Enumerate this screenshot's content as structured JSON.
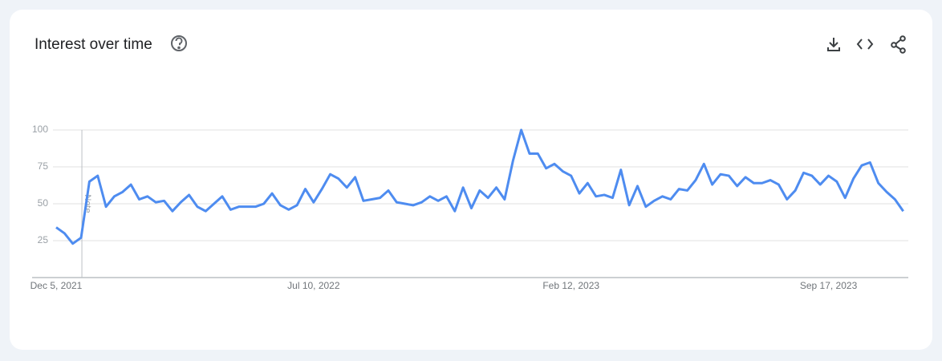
{
  "chart_data": {
    "type": "line",
    "title": "Interest over time",
    "categories": [
      "Dec 5, 2021",
      null,
      null,
      null,
      null,
      null,
      null,
      null,
      null,
      null,
      null,
      null,
      null,
      null,
      null,
      null,
      null,
      null,
      null,
      null,
      null,
      null,
      null,
      null,
      null,
      null,
      null,
      null,
      null,
      null,
      null,
      "Jul 10, 2022",
      null,
      null,
      null,
      null,
      null,
      null,
      null,
      null,
      null,
      null,
      null,
      null,
      null,
      null,
      null,
      null,
      null,
      null,
      null,
      null,
      null,
      null,
      null,
      null,
      null,
      null,
      null,
      null,
      null,
      null,
      "Feb 12, 2023",
      null,
      null,
      null,
      null,
      null,
      null,
      null,
      null,
      null,
      null,
      null,
      null,
      null,
      null,
      null,
      null,
      null,
      null,
      null,
      null,
      null,
      null,
      null,
      null,
      null,
      null,
      null,
      null,
      null,
      null,
      "Sep 17, 2023",
      null,
      null,
      null,
      null,
      null,
      null,
      null,
      null,
      null
    ],
    "values": [
      34,
      30,
      23,
      27,
      65,
      69,
      48,
      55,
      58,
      63,
      53,
      55,
      51,
      52,
      45,
      51,
      56,
      48,
      45,
      50,
      55,
      46,
      48,
      48,
      48,
      50,
      57,
      49,
      46,
      49,
      60,
      51,
      60,
      70,
      67,
      61,
      68,
      52,
      53,
      54,
      59,
      51,
      50,
      49,
      51,
      55,
      52,
      55,
      45,
      61,
      47,
      59,
      54,
      61,
      53,
      79,
      100,
      84,
      84,
      74,
      77,
      72,
      69,
      57,
      64,
      55,
      56,
      54,
      73,
      49,
      62,
      48,
      52,
      55,
      53,
      60,
      59,
      66,
      77,
      63,
      70,
      69,
      62,
      68,
      64,
      64,
      66,
      63,
      53,
      59,
      71,
      69,
      63,
      69,
      65,
      54,
      67,
      76,
      78,
      64,
      58,
      53,
      45
    ],
    "color": "#4e8cf0",
    "ylim": [
      0,
      100
    ],
    "yticks": [
      25,
      50,
      75,
      100
    ],
    "grid": true,
    "annotations": [
      {
        "label": "Note"
      }
    ]
  }
}
